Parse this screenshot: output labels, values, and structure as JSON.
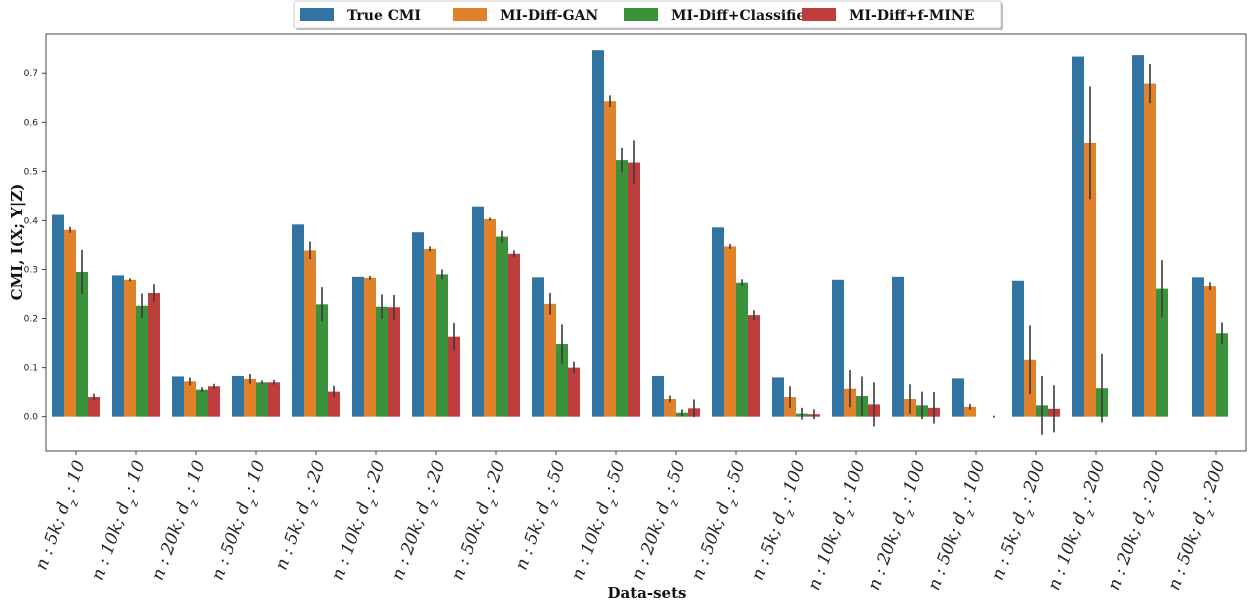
{
  "chart_data": {
    "type": "bar",
    "title": "",
    "xlabel": "Data-sets",
    "ylabel": "CMI, I(X; Y|Z)",
    "ylim": [
      -0.07,
      0.78
    ],
    "yticks": [
      0.0,
      0.1,
      0.2,
      0.3,
      0.4,
      0.5,
      0.6,
      0.7
    ],
    "legend_position": "top-center",
    "categories": [
      "n : 5k;  dz : 10",
      "n : 10k;  dz : 10",
      "n : 20k;  dz : 10",
      "n : 50k;  dz : 10",
      "n : 5k;  dz : 20",
      "n : 10k;  dz : 20",
      "n : 20k;  dz : 20",
      "n : 50k;  dz : 20",
      "n : 5k;  dz : 50",
      "n : 10k;  dz : 50",
      "n : 20k;  dz : 50",
      "n : 50k;  dz : 50",
      "n : 5k;  dz : 100",
      "n : 10k;  dz : 100",
      "n : 20k;  dz : 100",
      "n : 50k;  dz : 100",
      "n : 5k;  dz : 200",
      "n : 10k;  dz : 200",
      "n : 20k;  dz : 200",
      "n : 50k;  dz : 200"
    ],
    "series": [
      {
        "name": "True CMI",
        "color": "#3274a1",
        "values": [
          0.412,
          0.288,
          0.082,
          0.083,
          0.392,
          0.285,
          0.376,
          0.428,
          0.284,
          0.747,
          0.083,
          0.386,
          0.08,
          0.279,
          0.285,
          0.078,
          0.277,
          0.734,
          0.737,
          0.284
        ],
        "errors": [
          0,
          0,
          0,
          0,
          0,
          0,
          0,
          0,
          0,
          0,
          0,
          0,
          0,
          0,
          0,
          0,
          0,
          0,
          0,
          0
        ]
      },
      {
        "name": "MI-Diff-GAN",
        "color": "#e1812c",
        "values": [
          0.381,
          0.279,
          0.072,
          0.077,
          0.339,
          0.283,
          0.342,
          0.403,
          0.23,
          0.643,
          0.036,
          0.347,
          0.04,
          0.057,
          0.036,
          0.02,
          0.116,
          0.558,
          0.679,
          0.266
        ],
        "errors": [
          0.006,
          0.003,
          0.008,
          0.01,
          0.018,
          0.004,
          0.005,
          0.003,
          0.022,
          0.012,
          0.007,
          0.005,
          0.022,
          0.038,
          0.03,
          0.006,
          0.07,
          0.115,
          0.04,
          0.008
        ]
      },
      {
        "name": "MI-Diff+Classifier",
        "color": "#3a923a",
        "values": [
          0.295,
          0.226,
          0.055,
          0.07,
          0.229,
          0.224,
          0.29,
          0.367,
          0.148,
          0.523,
          0.008,
          0.273,
          0.006,
          0.042,
          0.023,
          0.0,
          0.023,
          0.058,
          0.261,
          0.17
        ],
        "errors": [
          0.045,
          0.025,
          0.005,
          0.004,
          0.035,
          0.025,
          0.01,
          0.012,
          0.04,
          0.025,
          0.007,
          0.007,
          0.012,
          0.04,
          0.028,
          0.0,
          0.06,
          0.07,
          0.058,
          0.022
        ]
      },
      {
        "name": "MI-Diff+f-MINE",
        "color": "#c03d3e",
        "values": [
          0.04,
          0.252,
          0.062,
          0.07,
          0.051,
          0.223,
          0.163,
          0.332,
          0.1,
          0.518,
          0.017,
          0.207,
          0.005,
          0.025,
          0.018,
          0.0,
          0.016,
          0.0,
          0.0,
          0.0
        ],
        "errors": [
          0.007,
          0.018,
          0.005,
          0.005,
          0.012,
          0.025,
          0.028,
          0.007,
          0.012,
          0.045,
          0.018,
          0.01,
          0.01,
          0.045,
          0.032,
          0.002,
          0.048,
          0,
          0,
          0
        ]
      }
    ]
  }
}
